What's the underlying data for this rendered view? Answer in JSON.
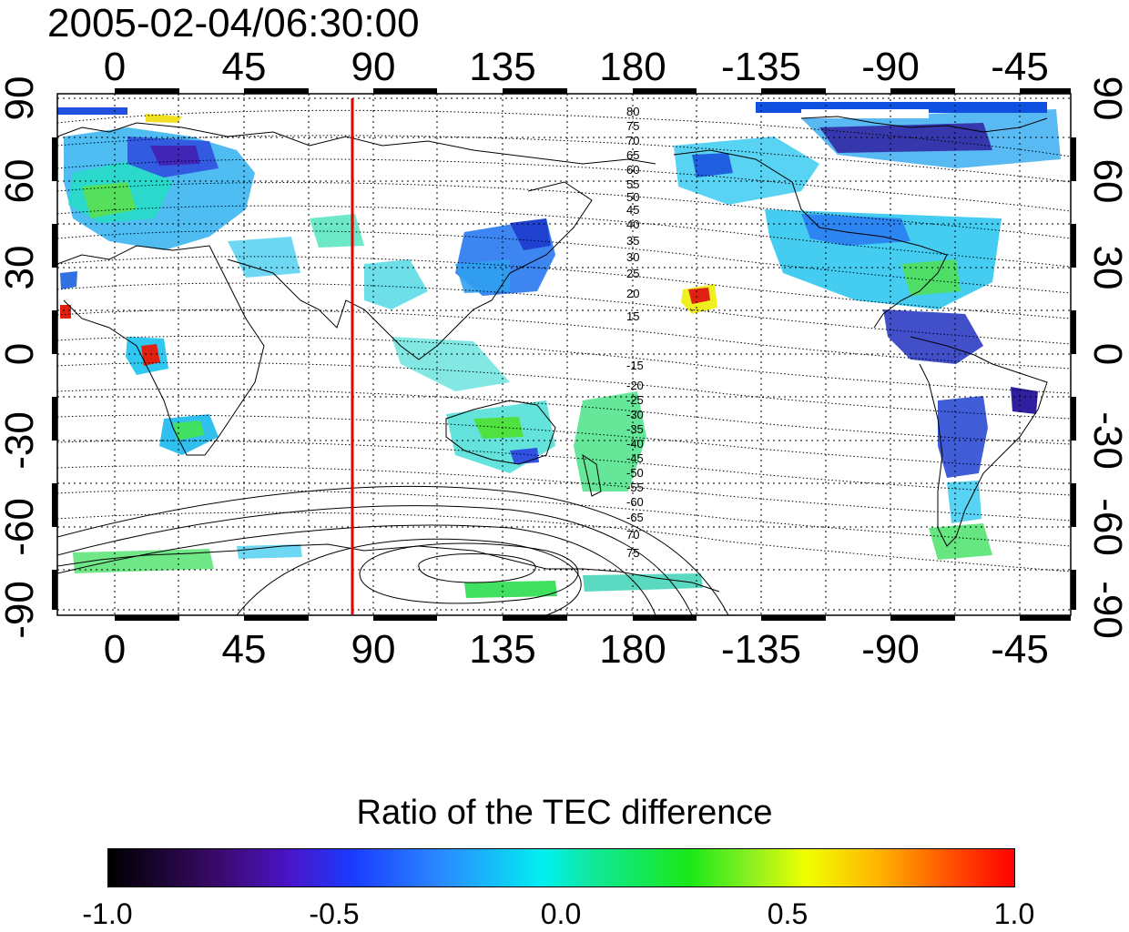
{
  "timestamp": "2005-02-04/06:30:00",
  "colorbar": {
    "title": "Ratio of the TEC difference",
    "ticks": [
      "-1.0",
      "-0.5",
      "0.0",
      "0.5",
      "1.0"
    ],
    "range": [
      -1.0,
      1.0
    ],
    "stops": [
      "#000000",
      "#4a14c8",
      "#1a3cff",
      "#00f0f0",
      "#18e818",
      "#f0ff00",
      "#ff5000",
      "#ff0000"
    ]
  },
  "map": {
    "lon_tick_labels": [
      "0",
      "45",
      "90",
      "135",
      "180",
      "-135",
      "-90",
      "-45"
    ],
    "lat_tick_labels": [
      "90",
      "60",
      "30",
      "0",
      "-30",
      "-60",
      "-90"
    ],
    "grid": true,
    "marker_line": {
      "lon": 84,
      "color": "#e00000"
    },
    "contour_labels_north": [
      "80",
      "75",
      "70",
      "65",
      "60",
      "55",
      "50",
      "45",
      "40",
      "35",
      "30",
      "25",
      "20",
      "15"
    ],
    "contour_labels_south": [
      "-15",
      "-20",
      "-25",
      "-30",
      "-35",
      "-40",
      "-45",
      "-50",
      "-55",
      "-60",
      "-65",
      "70",
      "75"
    ]
  }
}
